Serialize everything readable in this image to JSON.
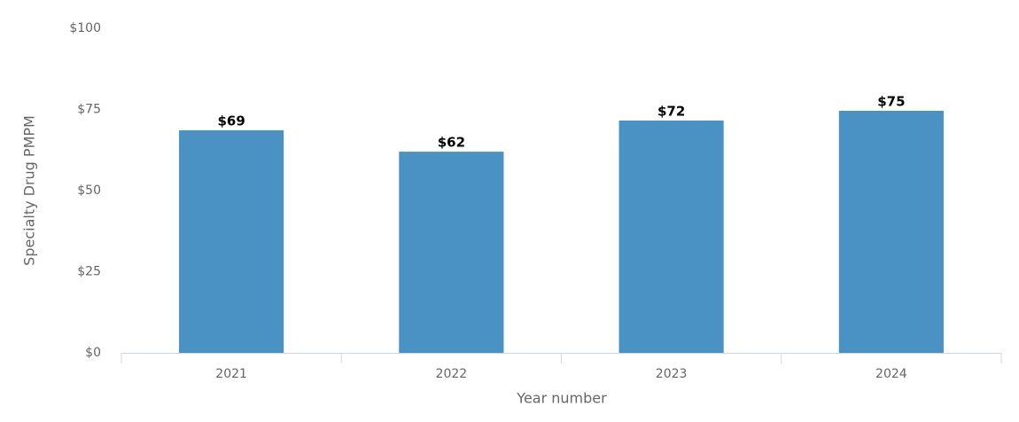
{
  "chart_data": {
    "type": "bar",
    "x_label": "Year number",
    "y_label": "Specialty Drug PMPM",
    "categories": [
      "2021",
      "2022",
      "2023",
      "2024"
    ],
    "values": [
      68.6,
      62.0,
      71.6,
      74.6
    ],
    "value_labels": [
      "$69",
      "$62",
      "$72",
      "$75"
    ],
    "color": "#4a92c4",
    "ylim": [
      0,
      100
    ],
    "yticks": [
      {
        "value": 0,
        "label": "$0"
      },
      {
        "value": 25,
        "label": "$25"
      },
      {
        "value": 50,
        "label": "$50"
      },
      {
        "value": 75,
        "label": "$75"
      },
      {
        "value": 100,
        "label": "$100"
      }
    ],
    "grid": false
  }
}
